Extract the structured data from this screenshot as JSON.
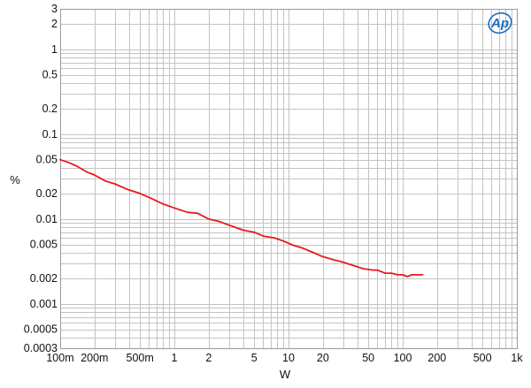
{
  "chart_data": {
    "type": "line",
    "xlabel": "W",
    "ylabel": "%",
    "xscale": "log",
    "yscale": "log",
    "xlim": [
      0.1,
      1000
    ],
    "ylim": [
      0.0003,
      3
    ],
    "grid": true,
    "x_ticks": [
      {
        "value": 0.1,
        "label": "100m"
      },
      {
        "value": 0.2,
        "label": "200m"
      },
      {
        "value": 0.5,
        "label": "500m"
      },
      {
        "value": 1,
        "label": "1"
      },
      {
        "value": 2,
        "label": "2"
      },
      {
        "value": 5,
        "label": "5"
      },
      {
        "value": 10,
        "label": "10"
      },
      {
        "value": 20,
        "label": "20"
      },
      {
        "value": 50,
        "label": "50"
      },
      {
        "value": 100,
        "label": "100"
      },
      {
        "value": 200,
        "label": "200"
      },
      {
        "value": 500,
        "label": "500"
      },
      {
        "value": 1000,
        "label": "1k"
      }
    ],
    "y_ticks": [
      {
        "value": 3,
        "label": "3"
      },
      {
        "value": 2,
        "label": "2"
      },
      {
        "value": 1,
        "label": "1"
      },
      {
        "value": 0.5,
        "label": "0.5"
      },
      {
        "value": 0.2,
        "label": "0.2"
      },
      {
        "value": 0.1,
        "label": "0.1"
      },
      {
        "value": 0.05,
        "label": "0.05"
      },
      {
        "value": 0.02,
        "label": "0.02"
      },
      {
        "value": 0.01,
        "label": "0.01"
      },
      {
        "value": 0.005,
        "label": "0.005"
      },
      {
        "value": 0.002,
        "label": "0.002"
      },
      {
        "value": 0.001,
        "label": "0.001"
      },
      {
        "value": 0.0005,
        "label": "0.0005"
      },
      {
        "value": 0.0003,
        "label": "0.0003"
      }
    ],
    "series": [
      {
        "color": "#e8191f",
        "x": [
          0.1,
          0.12,
          0.14,
          0.17,
          0.2,
          0.25,
          0.3,
          0.4,
          0.5,
          0.6,
          0.8,
          1.0,
          1.3,
          1.6,
          2.0,
          2.5,
          3.0,
          4.0,
          5.0,
          6.0,
          7.5,
          9.0,
          11,
          13,
          16,
          20,
          25,
          30,
          38,
          45,
          55,
          60,
          70,
          80,
          90,
          100,
          110,
          120,
          130,
          150
        ],
        "y": [
          0.05,
          0.046,
          0.042,
          0.036,
          0.033,
          0.028,
          0.026,
          0.022,
          0.02,
          0.018,
          0.015,
          0.0135,
          0.012,
          0.0117,
          0.01,
          0.0093,
          0.0085,
          0.0074,
          0.007,
          0.0063,
          0.006,
          0.0055,
          0.0049,
          0.0046,
          0.0041,
          0.0036,
          0.0033,
          0.0031,
          0.0028,
          0.0026,
          0.0025,
          0.0025,
          0.0023,
          0.0023,
          0.0022,
          0.0022,
          0.0021,
          0.0022,
          0.0022,
          0.0022
        ]
      }
    ]
  },
  "logo": {
    "text": "Ap",
    "color": "#1a6fc2"
  }
}
